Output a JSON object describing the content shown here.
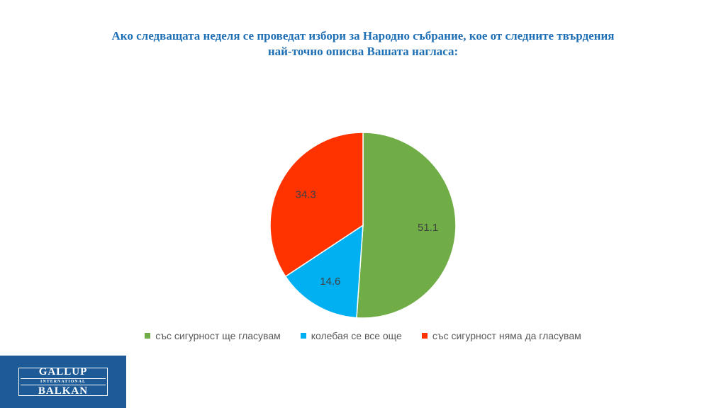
{
  "title_lines": [
    "Ако следващата неделя се проведат избори за Народно събрание, кое от следните твърдения",
    "най-точно описва Вашата нагласа:"
  ],
  "chart_data": {
    "type": "pie",
    "title": "Ако следващата неделя се проведат избори за Народно събрание, кое от следните твърдения най-точно описва Вашата нагласа:",
    "categories": [
      "със сигурност ще гласувам",
      "колебая се все още",
      "със сигурност няма да гласувам"
    ],
    "values": [
      51.1,
      14.6,
      34.3
    ],
    "labels": [
      "51.1",
      "14.6",
      "34.3"
    ],
    "colors": [
      "#70ad47",
      "#00b0f0",
      "#ff3300"
    ],
    "start_angle": "12 o'clock",
    "direction": "clockwise",
    "legend_position": "bottom"
  },
  "logo": {
    "line1": "GALLUP",
    "line2": "INTERNATIONAL",
    "line3": "BALKAN"
  }
}
